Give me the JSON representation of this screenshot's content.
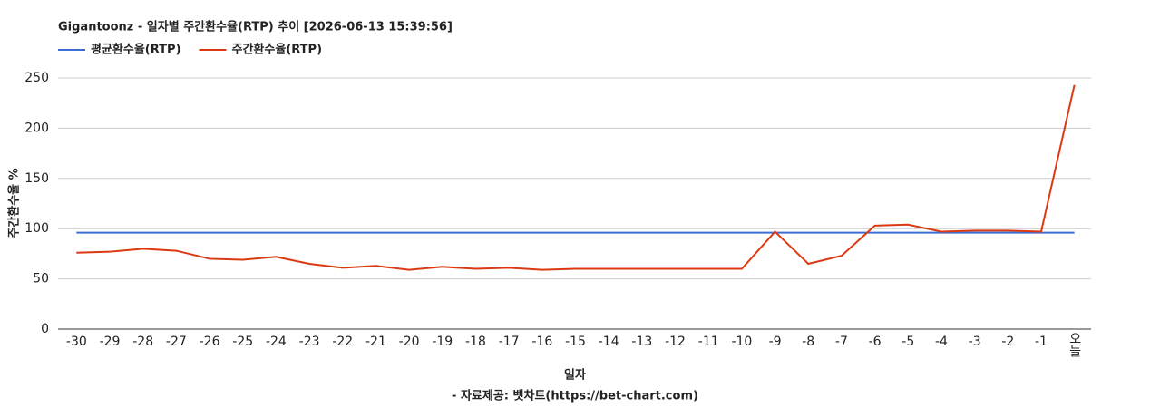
{
  "chart_data": {
    "type": "line",
    "title": "Gigantoonz - 일자별 주간환수율(RTP) 추이 [2026-06-13 15:39:56]",
    "x_label": "일자",
    "y_label": "주간환수율 %",
    "footer": "- 자료제공: 벳차트(https://bet-chart.com)",
    "categories": [
      "-30",
      "-29",
      "-28",
      "-27",
      "-26",
      "-25",
      "-24",
      "-23",
      "-22",
      "-21",
      "-20",
      "-19",
      "-18",
      "-17",
      "-16",
      "-15",
      "-14",
      "-13",
      "-12",
      "-11",
      "-10",
      "-9",
      "-8",
      "-7",
      "-6",
      "-5",
      "-4",
      "-3",
      "-2",
      "-1",
      "오늘"
    ],
    "series": [
      {
        "name": "평균환수율(RTP)",
        "color": "#3b6fd6",
        "values": [
          96,
          96,
          96,
          96,
          96,
          96,
          96,
          96,
          96,
          96,
          96,
          96,
          96,
          96,
          96,
          96,
          96,
          96,
          96,
          96,
          96,
          96,
          96,
          96,
          96,
          96,
          96,
          96,
          96,
          96,
          96
        ]
      },
      {
        "name": "주간환수율(RTP)",
        "color": "#dc3912",
        "values": [
          76,
          77,
          80,
          78,
          70,
          69,
          72,
          65,
          61,
          63,
          59,
          62,
          60,
          61,
          59,
          60,
          60,
          60,
          60,
          60,
          60,
          97,
          65,
          73,
          103,
          104,
          97,
          98,
          98,
          97,
          243
        ]
      }
    ],
    "ylim": [
      0,
      250
    ],
    "yticks": [
      0,
      50,
      100,
      150,
      200,
      250
    ],
    "grid": true
  }
}
